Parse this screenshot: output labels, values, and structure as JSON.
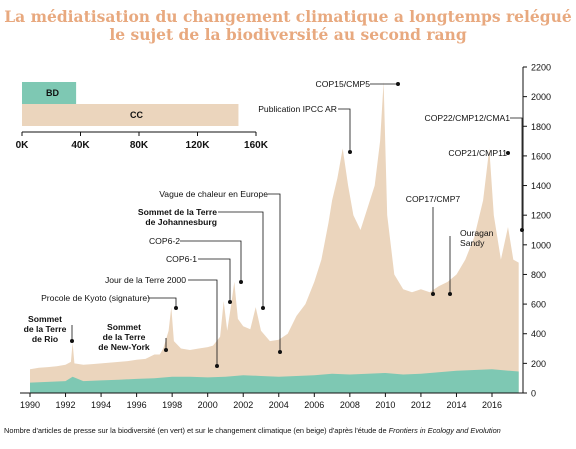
{
  "title_lines": [
    "La médiatisation du changement climatique a longtemps relégué",
    "le sujet de la biodiversité au second rang"
  ],
  "caption": {
    "prefix": "Nombre d'articles de presse sur la biodiversité (en vert) et sur le changement climatique (en beige) d'après l'étude de ",
    "source": "Frontiers in Ecology and Evolution"
  },
  "colors": {
    "title": "#e8a97f",
    "bd": "#7ec8b3",
    "cc": "#ebd5bd",
    "axis": "#111111",
    "background": "#ffffff"
  },
  "chart_data": [
    {
      "type": "bar",
      "orientation": "horizontal",
      "categories": [
        "BD",
        "CC"
      ],
      "values": [
        37000,
        148000
      ],
      "xlim": [
        0,
        160000
      ],
      "xticks": [
        0,
        40000,
        80000,
        120000,
        160000
      ],
      "xtick_labels": [
        "0K",
        "40K",
        "80K",
        "120K",
        "160K"
      ]
    },
    {
      "type": "area",
      "xlim": [
        1990,
        2017.5
      ],
      "ylim": [
        0,
        2200
      ],
      "xticks": [
        1990,
        1992,
        1994,
        1996,
        1998,
        2000,
        2002,
        2004,
        2006,
        2008,
        2010,
        2012,
        2014,
        2016
      ],
      "yticks": [
        0,
        200,
        400,
        600,
        800,
        1000,
        1200,
        1400,
        1600,
        1800,
        2000,
        2200
      ],
      "y_axis_side": "right",
      "grid": false,
      "series": [
        {
          "color_key": "cc",
          "points": [
            [
              1990,
              160
            ],
            [
              1990.5,
              170
            ],
            [
              1991,
              175
            ],
            [
              1991.5,
              180
            ],
            [
              1992,
              190
            ],
            [
              1992.3,
              210
            ],
            [
              1992.4,
              340
            ],
            [
              1992.5,
              200
            ],
            [
              1993,
              190
            ],
            [
              1993.5,
              195
            ],
            [
              1994,
              200
            ],
            [
              1994.5,
              205
            ],
            [
              1995,
              210
            ],
            [
              1995.5,
              215
            ],
            [
              1996,
              225
            ],
            [
              1996.5,
              230
            ],
            [
              1997,
              260
            ],
            [
              1997.3,
              260
            ],
            [
              1997.5,
              300
            ],
            [
              1997.8,
              420
            ],
            [
              1997.95,
              580
            ],
            [
              1998.1,
              350
            ],
            [
              1998.5,
              300
            ],
            [
              1999,
              290
            ],
            [
              1999.5,
              300
            ],
            [
              2000,
              310
            ],
            [
              2000.3,
              320
            ],
            [
              2000.7,
              380
            ],
            [
              2000.9,
              620
            ],
            [
              2001.1,
              420
            ],
            [
              2001.3,
              580
            ],
            [
              2001.5,
              750
            ],
            [
              2001.7,
              500
            ],
            [
              2002,
              450
            ],
            [
              2002.4,
              430
            ],
            [
              2002.7,
              580
            ],
            [
              2003,
              420
            ],
            [
              2003.5,
              350
            ],
            [
              2004,
              360
            ],
            [
              2004.5,
              400
            ],
            [
              2005,
              520
            ],
            [
              2005.5,
              600
            ],
            [
              2006,
              750
            ],
            [
              2006.4,
              900
            ],
            [
              2006.8,
              1150
            ],
            [
              2007,
              1300
            ],
            [
              2007.3,
              1450
            ],
            [
              2007.6,
              1650
            ],
            [
              2007.9,
              1400
            ],
            [
              2008.2,
              1200
            ],
            [
              2008.6,
              1100
            ],
            [
              2009,
              1250
            ],
            [
              2009.4,
              1400
            ],
            [
              2009.7,
              1700
            ],
            [
              2009.9,
              2100
            ],
            [
              2010.1,
              1200
            ],
            [
              2010.5,
              800
            ],
            [
              2011,
              700
            ],
            [
              2011.5,
              680
            ],
            [
              2012,
              700
            ],
            [
              2012.5,
              680
            ],
            [
              2013,
              720
            ],
            [
              2013.5,
              750
            ],
            [
              2014,
              800
            ],
            [
              2014.5,
              900
            ],
            [
              2015,
              1050
            ],
            [
              2015.5,
              1300
            ],
            [
              2015.85,
              1650
            ],
            [
              2016.1,
              1200
            ],
            [
              2016.5,
              900
            ],
            [
              2016.9,
              1120
            ],
            [
              2017.2,
              900
            ],
            [
              2017.5,
              880
            ]
          ]
        },
        {
          "color_key": "bd",
          "points": [
            [
              1990,
              70
            ],
            [
              1991,
              75
            ],
            [
              1992,
              80
            ],
            [
              1992.4,
              110
            ],
            [
              1993,
              80
            ],
            [
              1994,
              85
            ],
            [
              1995,
              90
            ],
            [
              1996,
              95
            ],
            [
              1997,
              100
            ],
            [
              1998,
              110
            ],
            [
              1999,
              110
            ],
            [
              2000,
              105
            ],
            [
              2001,
              110
            ],
            [
              2002,
              120
            ],
            [
              2003,
              115
            ],
            [
              2004,
              110
            ],
            [
              2005,
              115
            ],
            [
              2006,
              120
            ],
            [
              2007,
              130
            ],
            [
              2008,
              125
            ],
            [
              2009,
              130
            ],
            [
              2010,
              135
            ],
            [
              2011,
              125
            ],
            [
              2012,
              130
            ],
            [
              2013,
              140
            ],
            [
              2014,
              150
            ],
            [
              2015,
              155
            ],
            [
              2016,
              160
            ],
            [
              2017,
              150
            ],
            [
              2017.5,
              145
            ]
          ]
        }
      ],
      "annotations": [
        {
          "lines": [
            "Sommet",
            "de la Terre",
            "de Rio"
          ],
          "bold": true,
          "x": 1992.4,
          "y": 340
        },
        {
          "lines": [
            "Sommet",
            "de la Terre",
            "de New-York"
          ],
          "bold": true,
          "x": 1997.3,
          "y": 260
        },
        {
          "lines": [
            "Procole de Kyoto (signature)"
          ],
          "bold": false,
          "x": 1997.95,
          "y": 580
        },
        {
          "lines": [
            "Jour de la Terre 2000"
          ],
          "bold": false,
          "x": 2000.3,
          "y": 180
        },
        {
          "lines": [
            "COP6-1"
          ],
          "bold": false,
          "x": 2000.9,
          "y": 620
        },
        {
          "lines": [
            "COP6-2"
          ],
          "bold": false,
          "x": 2001.5,
          "y": 750
        },
        {
          "lines": [
            "Sommet de la Terre",
            "de Johannesburg"
          ],
          "bold": true,
          "x": 2002.7,
          "y": 580
        },
        {
          "lines": [
            "Vague de chaleur en Europe"
          ],
          "bold": false,
          "x": 2003.5,
          "y": 280
        },
        {
          "lines": [
            "Publication IPCC AR"
          ],
          "bold": false,
          "x": 2007.6,
          "y": 1630
        },
        {
          "lines": [
            "COP15/CMP5"
          ],
          "bold": false,
          "x": 2009.9,
          "y": 2090
        },
        {
          "lines": [
            "COP17/CMP7"
          ],
          "bold": false,
          "x": 2011.9,
          "y": 670
        },
        {
          "lines": [
            "Ouragan",
            "Sandy"
          ],
          "bold": false,
          "x": 2012.9,
          "y": 670
        },
        {
          "lines": [
            "COP21/CMP11"
          ],
          "bold": false,
          "x": 2015.85,
          "y": 1620
        },
        {
          "lines": [
            "COP22/CMP12/CMA1"
          ],
          "bold": false,
          "x": 2016.9,
          "y": 1110
        }
      ]
    }
  ]
}
